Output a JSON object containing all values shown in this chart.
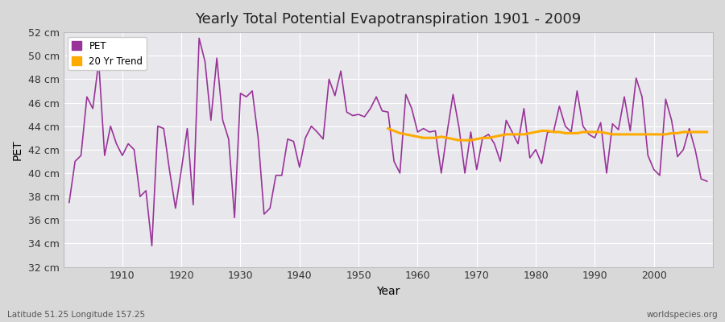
{
  "title": "Yearly Total Potential Evapotranspiration 1901 - 2009",
  "xlabel": "Year",
  "ylabel": "PET",
  "pet_color": "#993399",
  "trend_color": "#ffaa00",
  "fig_bg_color": "#d8d8d8",
  "plot_bg_color": "#e8e8ec",
  "grid_color": "#ffffff",
  "start_year": 1901,
  "end_year": 2009,
  "ylim_min": 32,
  "ylim_max": 52,
  "yticks": [
    32,
    34,
    36,
    38,
    40,
    42,
    44,
    46,
    48,
    50,
    52
  ],
  "xticks": [
    1910,
    1920,
    1930,
    1940,
    1950,
    1960,
    1970,
    1980,
    1990,
    2000
  ],
  "pet_values": [
    37.5,
    41.0,
    41.5,
    46.5,
    45.5,
    49.5,
    41.5,
    44.0,
    42.5,
    41.5,
    42.5,
    42.0,
    38.0,
    38.5,
    33.8,
    44.0,
    43.8,
    40.2,
    37.0,
    40.3,
    43.8,
    37.3,
    51.5,
    49.5,
    44.5,
    49.8,
    44.5,
    42.9,
    36.2,
    46.8,
    46.5,
    47.0,
    43.0,
    36.5,
    37.0,
    39.8,
    39.8,
    42.9,
    42.7,
    40.5,
    43.0,
    44.0,
    43.5,
    42.9,
    48.0,
    46.6,
    48.7,
    45.2,
    44.9,
    45.0,
    44.8,
    45.5,
    46.5,
    45.3,
    45.2,
    41.0,
    40.0,
    46.7,
    45.5,
    43.5,
    43.8,
    43.5,
    43.6,
    40.0,
    43.5,
    46.7,
    43.9,
    40.0,
    43.5,
    40.3,
    43.0,
    43.3,
    42.5,
    41.0,
    44.5,
    43.5,
    42.5,
    45.5,
    41.3,
    42.0,
    40.8,
    43.5,
    43.5,
    45.7,
    44.0,
    43.5,
    47.0,
    44.0,
    43.3,
    43.0,
    44.3,
    40.0,
    44.2,
    43.7,
    46.5,
    43.6,
    48.1,
    46.5,
    41.5,
    40.3,
    39.8,
    46.3,
    44.5,
    41.4,
    42.0,
    43.8,
    42.0,
    39.5,
    39.3
  ],
  "trend_start_year": 1955,
  "trend_values": [
    43.8,
    43.6,
    43.4,
    43.3,
    43.2,
    43.1,
    43.0,
    43.0,
    43.0,
    43.1,
    43.0,
    42.9,
    42.8,
    42.8,
    42.8,
    42.9,
    43.0,
    43.0,
    43.1,
    43.2,
    43.3,
    43.3,
    43.3,
    43.3,
    43.4,
    43.5,
    43.6,
    43.6,
    43.5,
    43.5,
    43.4,
    43.4,
    43.4,
    43.5,
    43.5,
    43.5,
    43.5,
    43.4,
    43.3,
    43.3,
    43.3,
    43.3,
    43.3,
    43.3,
    43.3,
    43.3,
    43.3,
    43.3,
    43.4,
    43.4,
    43.5,
    43.5,
    43.5,
    43.5,
    43.5
  ],
  "lat_lon_text": "Latitude 51.25 Longitude 157.25",
  "watermark_text": "worldspecies.org",
  "title_fontsize": 13,
  "axis_fontsize": 9,
  "label_fontsize": 10
}
